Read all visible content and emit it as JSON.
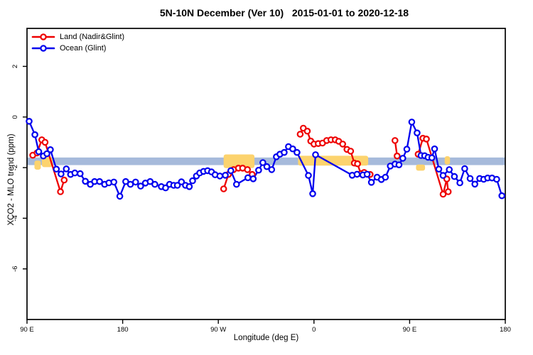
{
  "figure": {
    "title": "5N-10N December (Ver 10)   2015-01-01 to 2020-12-18"
  },
  "legend": {
    "items": [
      {
        "label": "Land (Nadir&Glint)",
        "color": "#EE0000"
      },
      {
        "label": "Ocean (Glint)",
        "color": "#0000EE"
      }
    ]
  },
  "chart_data": {
    "type": "line",
    "title": "5N-10N December (Ver 10)   2015-01-01 to 2020-12-18",
    "xlabel": "Longitude (deg E)",
    "ylabel": "XCO2 - MLO trend (ppm)",
    "x_note": "longitude unwrapped: 90E eastward through 180, 90W, 0, 90E, 180",
    "xlim": [
      90,
      540
    ],
    "ylim": [
      -8,
      3.5
    ],
    "grid": false,
    "legend_position": "top-left",
    "x_ticks": [
      {
        "value": 90,
        "label": "90 E"
      },
      {
        "value": 180,
        "label": "180"
      },
      {
        "value": 270,
        "label": "90 W"
      },
      {
        "value": 360,
        "label": "0"
      },
      {
        "value": 450,
        "label": "90 E"
      },
      {
        "value": 540,
        "label": "180"
      }
    ],
    "y_ticks": [
      {
        "value": 2,
        "label": "2"
      },
      {
        "value": 0,
        "label": "0"
      },
      {
        "value": -2,
        "label": "-2"
      },
      {
        "value": -4,
        "label": "-4"
      },
      {
        "value": -6,
        "label": "-6"
      }
    ],
    "band": {
      "y_top": -1.6,
      "y_bottom": -1.9,
      "color": "#A6BADB"
    },
    "patch_color": "#FCD36E",
    "patches": [
      {
        "x1": 97,
        "x2": 103,
        "y_top": -1.72,
        "y_bottom": -2.08
      },
      {
        "x1": 104,
        "x2": 114,
        "y_top": -1.58,
        "y_bottom": -1.98
      },
      {
        "x1": 275,
        "x2": 304,
        "y_top": -1.48,
        "y_bottom": -2.02
      },
      {
        "x1": 345,
        "x2": 411,
        "y_top": -1.53,
        "y_bottom": -1.92
      },
      {
        "x1": 456,
        "x2": 464.5,
        "y_top": -1.88,
        "y_bottom": -2.12
      },
      {
        "x1": 483,
        "x2": 488,
        "y_top": -1.55,
        "y_bottom": -1.88
      }
    ],
    "series": [
      {
        "name": "Land (Nadir&Glint)",
        "color": "#EE0000",
        "marker": "open-circle",
        "segments": [
          [
            [
              95.4,
              -1.51
            ],
            [
              99.4,
              -1.42
            ],
            [
              103.9,
              -0.9
            ],
            [
              107,
              -1.0
            ],
            [
              121.5,
              -2.95
            ],
            [
              125,
              -2.49
            ]
          ],
          [
            [
              275,
              -2.84
            ],
            [
              279.5,
              -2.27
            ],
            [
              284.4,
              -2.08
            ],
            [
              288.9,
              -2.02
            ],
            [
              292.9,
              -2.02
            ],
            [
              297.4,
              -2.08
            ],
            [
              301.9,
              -2.27
            ]
          ],
          [
            [
              347,
              -0.68
            ],
            [
              350,
              -0.44
            ],
            [
              353.7,
              -0.56
            ],
            [
              357,
              -0.95
            ],
            [
              360,
              -1.07
            ],
            [
              364,
              -1.05
            ],
            [
              368,
              -1.03
            ],
            [
              372,
              -0.93
            ],
            [
              376,
              -0.9
            ],
            [
              380,
              -0.9
            ],
            [
              383.3,
              -0.96
            ],
            [
              387,
              -1.07
            ],
            [
              391,
              -1.28
            ],
            [
              394.5,
              -1.35
            ],
            [
              398,
              -1.82
            ],
            [
              401,
              -1.85
            ],
            [
              404,
              -2.24
            ],
            [
              407.2,
              -2.19
            ],
            [
              412.8,
              -2.27
            ]
          ],
          [
            [
              436.2,
              -0.93
            ],
            [
              438.2,
              -1.54
            ]
          ],
          [
            [
              458,
              -1.47
            ],
            [
              462.5,
              -0.84
            ],
            [
              465.8,
              -0.87
            ],
            [
              481.5,
              -3.05
            ],
            [
              485,
              -2.45
            ],
            [
              486.3,
              -2.95
            ]
          ]
        ]
      },
      {
        "name": "Ocean (Glint)",
        "color": "#0000EE",
        "marker": "open-circle",
        "segments": [
          [
            [
              92,
              -0.17
            ],
            [
              97.4,
              -0.7
            ],
            [
              101,
              -1.37
            ],
            [
              105.4,
              -1.54
            ],
            [
              108.7,
              -1.45
            ],
            [
              112,
              -1.29
            ],
            [
              117.6,
              -2.06
            ],
            [
              122,
              -2.25
            ],
            [
              127,
              -2.05
            ],
            [
              131,
              -2.27
            ],
            [
              135,
              -2.21
            ],
            [
              140,
              -2.24
            ],
            [
              144.9,
              -2.54
            ],
            [
              149.6,
              -2.66
            ],
            [
              153.6,
              -2.55
            ],
            [
              158.3,
              -2.55
            ],
            [
              163,
              -2.66
            ],
            [
              167,
              -2.6
            ],
            [
              171.7,
              -2.57
            ],
            [
              177.3,
              -3.13
            ],
            [
              182.9,
              -2.55
            ],
            [
              187.3,
              -2.66
            ],
            [
              192.2,
              -2.57
            ],
            [
              196.9,
              -2.73
            ],
            [
              201.4,
              -2.61
            ],
            [
              205.9,
              -2.55
            ],
            [
              210.3,
              -2.66
            ],
            [
              216.4,
              -2.75
            ],
            [
              220.4,
              -2.8
            ],
            [
              224.1,
              -2.66
            ],
            [
              228,
              -2.7
            ],
            [
              231.5,
              -2.7
            ],
            [
              235.3,
              -2.56
            ],
            [
              239.1,
              -2.7
            ],
            [
              242.7,
              -2.75
            ],
            [
              245.8,
              -2.52
            ],
            [
              249.4,
              -2.33
            ],
            [
              252.5,
              -2.21
            ],
            [
              256.1,
              -2.15
            ],
            [
              259.9,
              -2.12
            ],
            [
              263.6,
              -2.17
            ],
            [
              267,
              -2.28
            ],
            [
              271.5,
              -2.33
            ],
            [
              276.6,
              -2.3
            ],
            [
              281.8,
              -2.12
            ],
            [
              287.1,
              -2.66
            ],
            [
              297.8,
              -2.4
            ],
            [
              302.8,
              -2.44
            ],
            [
              307.9,
              -2.1
            ],
            [
              311.9,
              -1.8
            ],
            [
              315.7,
              -1.96
            ],
            [
              320.2,
              -2.08
            ],
            [
              324.6,
              -1.57
            ],
            [
              328,
              -1.47
            ],
            [
              332,
              -1.4
            ],
            [
              336,
              -1.17
            ],
            [
              340,
              -1.26
            ],
            [
              344,
              -1.4
            ],
            [
              354.8,
              -2.31
            ],
            [
              358.8,
              -3.03
            ],
            [
              361.5,
              -1.49
            ],
            [
              396,
              -2.3
            ],
            [
              400.5,
              -2.26
            ],
            [
              406,
              -2.29
            ],
            [
              410,
              -2.26
            ],
            [
              414,
              -2.58
            ],
            [
              419.4,
              -2.38
            ],
            [
              423.4,
              -2.47
            ],
            [
              427.2,
              -2.38
            ],
            [
              431.8,
              -1.94
            ],
            [
              436.2,
              -1.86
            ],
            [
              440,
              -1.89
            ],
            [
              443.6,
              -1.63
            ],
            [
              447.4,
              -1.27
            ],
            [
              452,
              -0.2
            ],
            [
              457,
              -0.63
            ],
            [
              460.7,
              -1.52
            ],
            [
              464.1,
              -1.53
            ],
            [
              467.3,
              -1.59
            ],
            [
              470.9,
              -1.61
            ],
            [
              473.5,
              -1.26
            ],
            [
              477.5,
              -2.06
            ],
            [
              481.4,
              -2.31
            ],
            [
              487.3,
              -2.08
            ],
            [
              492.1,
              -2.35
            ],
            [
              497.3,
              -2.6
            ],
            [
              501.8,
              -2.04
            ],
            [
              506.9,
              -2.43
            ],
            [
              511.4,
              -2.65
            ],
            [
              515.9,
              -2.43
            ],
            [
              519.7,
              -2.46
            ],
            [
              523.4,
              -2.41
            ],
            [
              527.5,
              -2.41
            ],
            [
              531.9,
              -2.46
            ],
            [
              536.8,
              -3.11
            ]
          ]
        ]
      }
    ]
  }
}
